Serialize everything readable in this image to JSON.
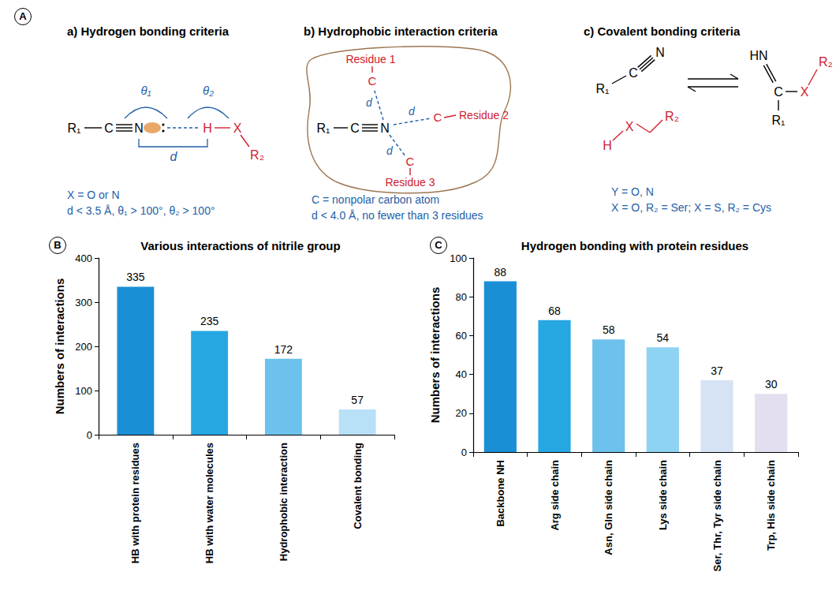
{
  "chart_data": [
    {
      "type": "bar",
      "title": "Various interactions of nitrile group",
      "ylabel": "Numbers of interactions",
      "categories": [
        "HB with protein residues",
        "HB with water molecules",
        "Hydrophobic interaction",
        "Covalent bonding"
      ],
      "values": [
        335,
        235,
        172,
        57
      ],
      "colors": [
        "#1b8fd6",
        "#27a7e2",
        "#6cc2ec",
        "#b8e0f6"
      ],
      "ylim": [
        0,
        400
      ],
      "yticks": [
        0,
        100,
        200,
        300,
        400
      ],
      "grid": false,
      "data_labels": true
    },
    {
      "type": "bar",
      "title": "Hydrogen bonding with protein residues",
      "ylabel": "Numbers of interactions",
      "categories": [
        "Backbone NH",
        "Arg side chain",
        "Asn, Gln side chain",
        "Lys side chain",
        "Ser, Thr, Tyr side chain",
        "Trp, His side chain"
      ],
      "values": [
        88,
        68,
        58,
        54,
        37,
        30
      ],
      "colors": [
        "#1b8fd6",
        "#27a7e2",
        "#6cc2ec",
        "#8fd3f2",
        "#d6e3f5",
        "#e3dff0"
      ],
      "ylim": [
        0,
        100
      ],
      "yticks": [
        0,
        20,
        40,
        60,
        80,
        100
      ],
      "grid": false,
      "data_labels": true
    }
  ],
  "diagram": {
    "panel_labels": [
      "A",
      "B",
      "C"
    ],
    "hydrogen_bonding": {
      "title": "a) Hydrogen bonding criteria",
      "atoms": {
        "r1": "R₁",
        "c": "C",
        "n": "N",
        "h": "H",
        "x": "X",
        "r2": "R₂"
      },
      "angles": [
        "θ₁",
        "θ₂"
      ],
      "distance": "d",
      "criteria": [
        "X = O or N",
        "d < 3.5 Å, θ₁ > 100°, θ₂ > 100°"
      ]
    },
    "hydrophobic": {
      "title": "b) Hydrophobic interaction criteria",
      "atoms": {
        "r1": "R₁",
        "c": "C",
        "n": "N"
      },
      "residues": [
        "Residue 1",
        "Residue 2",
        "Residue 3"
      ],
      "residue_atom": "C",
      "distance": "d",
      "criteria": [
        "C = nonpolar carbon atom",
        "d < 4.0 Å, no fewer than 3 residues"
      ]
    },
    "covalent": {
      "title": "c) Covalent bonding criteria",
      "left": {
        "r1": "R₁",
        "c": "C",
        "n": "N",
        "h": "H",
        "x": "X",
        "r2": "R₂"
      },
      "right": {
        "hn": "HN",
        "c": "C",
        "x": "X",
        "r1": "R₁",
        "r2": "R₂"
      },
      "criteria": [
        "Y = O, N",
        "X = O, R₂ = Ser; X = S, R₂ = Cys"
      ]
    }
  }
}
